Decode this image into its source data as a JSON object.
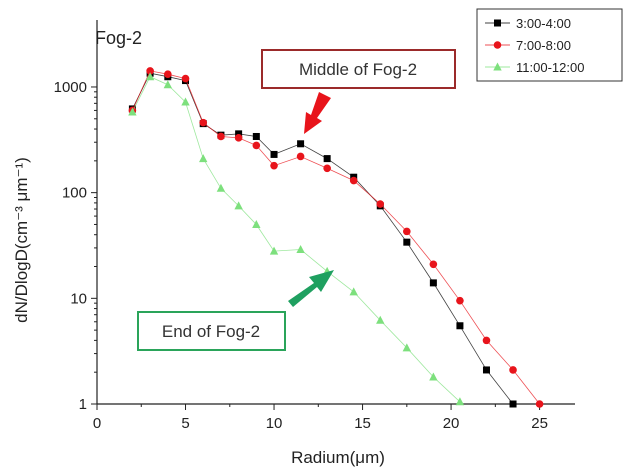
{
  "chart_data": {
    "type": "line",
    "title": "Fog-2",
    "xlabel": "Radium(μm)",
    "ylabel": "dN/DlogD(cm⁻³ μm⁻¹)",
    "xlim": [
      0,
      27
    ],
    "ylim": [
      1,
      1800
    ],
    "yscale": "log",
    "xticks": [
      0,
      5,
      10,
      15,
      20,
      25
    ],
    "yticks": [
      1,
      10,
      100,
      1000
    ],
    "legend_position": "top-right",
    "series": [
      {
        "name": "3:00-4:00",
        "color": "#000000",
        "marker": "square",
        "x": [
          2,
          3,
          4,
          5,
          6,
          7,
          8,
          9,
          10,
          11.5,
          13,
          14.5,
          16,
          17.5,
          19,
          20.5,
          22,
          23.5
        ],
        "y": [
          620,
          1350,
          1250,
          1150,
          450,
          350,
          360,
          340,
          230,
          290,
          210,
          140,
          75,
          34,
          14,
          5.5,
          2.1,
          1
        ]
      },
      {
        "name": "7:00-8:00",
        "color": "#e8141b",
        "marker": "circle",
        "x": [
          2,
          3,
          4,
          5,
          6,
          7,
          8,
          9,
          10,
          11.5,
          13,
          14.5,
          16,
          17.5,
          19,
          20.5,
          22,
          23.5,
          25
        ],
        "y": [
          600,
          1420,
          1320,
          1200,
          460,
          340,
          330,
          280,
          180,
          220,
          170,
          130,
          78,
          43,
          21,
          9.5,
          4,
          2.1,
          1
        ]
      },
      {
        "name": "11:00-12:00",
        "color": "#7de07d",
        "marker": "triangle",
        "x": [
          2,
          3,
          4,
          5,
          6,
          7,
          8,
          9,
          10,
          11.5,
          13,
          14.5,
          16,
          17.5,
          19,
          20.5
        ],
        "y": [
          580,
          1250,
          1050,
          720,
          210,
          110,
          75,
          50,
          28,
          29,
          18,
          11.5,
          6.2,
          3.4,
          1.8,
          1.05
        ]
      }
    ],
    "annotations": [
      {
        "text": "Middle of Fog-2",
        "border_color": "#9b2a2a",
        "arrow_color": "#e8141b"
      },
      {
        "text": "End of Fog-2",
        "border_color": "#2aa45a",
        "arrow_color": "#1fa060"
      }
    ]
  }
}
